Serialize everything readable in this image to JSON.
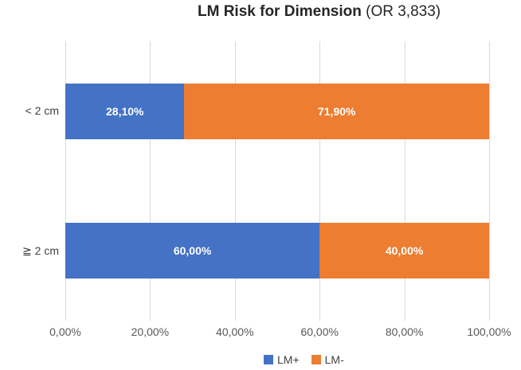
{
  "title": {
    "main": "LM Risk for Dimension",
    "suffix": " (OR 3,833)"
  },
  "colors": {
    "lm_plus": "#4472C4",
    "lm_minus": "#ED7D31",
    "gridline": "#D9D9D9",
    "axis_text": "#595959",
    "bar_label_text": "#FFFFFF",
    "background": "#FFFFFF"
  },
  "chart_data": {
    "type": "bar",
    "orientation": "horizontal",
    "stacked": true,
    "title": "LM Risk for Dimension (OR 3,833)",
    "categories": [
      "< 2 cm",
      "≧ 2 cm"
    ],
    "series": [
      {
        "name": "LM+",
        "color": "#4472C4",
        "values": [
          28.1,
          60.0
        ],
        "labels": [
          "28,10%",
          "60,00%"
        ]
      },
      {
        "name": "LM-",
        "color": "#ED7D31",
        "values": [
          71.9,
          40.0
        ],
        "labels": [
          "71,90%",
          "40,00%"
        ]
      }
    ],
    "x_axis": {
      "min": 0,
      "max": 100,
      "tick_labels": [
        "0,00%",
        "20,00%",
        "40,00%",
        "60,00%",
        "80,00%",
        "100,00%"
      ]
    },
    "grid": true,
    "legend_position": "bottom",
    "legend": [
      {
        "label": "LM+",
        "color": "#4472C4"
      },
      {
        "label": "LM-",
        "color": "#ED7D31"
      }
    ]
  }
}
